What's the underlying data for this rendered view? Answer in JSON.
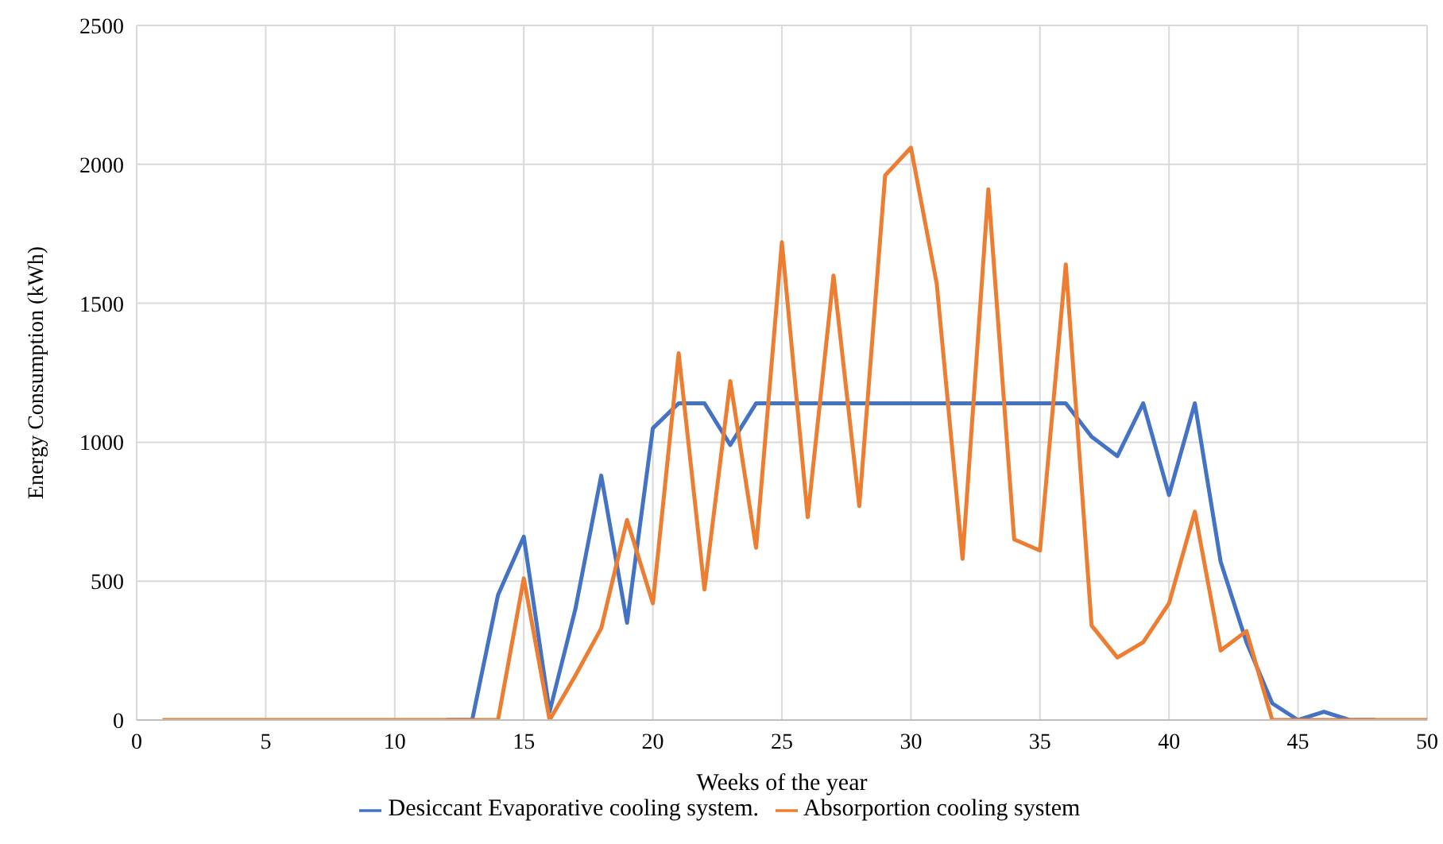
{
  "chart_data": {
    "type": "line",
    "xlabel": "Weeks of the year",
    "ylabel": "Energy Consumption (kWh)",
    "x": [
      1,
      2,
      3,
      4,
      5,
      6,
      7,
      8,
      9,
      10,
      11,
      12,
      13,
      14,
      15,
      16,
      17,
      18,
      19,
      20,
      21,
      22,
      23,
      24,
      25,
      26,
      27,
      28,
      29,
      30,
      31,
      32,
      33,
      34,
      35,
      36,
      37,
      38,
      39,
      40,
      41,
      42,
      43,
      44,
      45,
      46,
      47,
      48,
      49,
      50
    ],
    "series": [
      {
        "name": "Desiccant Evaporative cooling system.",
        "color": "#4472c4",
        "values": [
          null,
          null,
          null,
          null,
          null,
          null,
          null,
          null,
          null,
          null,
          null,
          0,
          0,
          450,
          660,
          30,
          400,
          880,
          350,
          1050,
          1140,
          1140,
          990,
          1140,
          1140,
          1140,
          1140,
          1140,
          1140,
          1140,
          1140,
          1140,
          1140,
          1140,
          1140,
          1140,
          1020,
          950,
          1140,
          810,
          1140,
          570,
          280,
          60,
          0,
          30,
          0,
          0,
          null,
          null
        ]
      },
      {
        "name": "Absorportion cooling system",
        "color": "#ed7d31",
        "values": [
          0,
          0,
          0,
          0,
          0,
          0,
          0,
          0,
          0,
          0,
          0,
          0,
          0,
          0,
          510,
          0,
          160,
          330,
          720,
          420,
          1320,
          470,
          1220,
          620,
          1720,
          730,
          1600,
          770,
          1960,
          2060,
          1570,
          580,
          1910,
          650,
          610,
          1640,
          340,
          225,
          280,
          420,
          750,
          250,
          320,
          0,
          0,
          0,
          0,
          0,
          0,
          0
        ]
      }
    ],
    "xlim": [
      0,
      50
    ],
    "xticks": [
      0,
      5,
      10,
      15,
      20,
      25,
      30,
      35,
      40,
      45,
      50
    ],
    "ylim": [
      0,
      2500
    ],
    "yticks": [
      0,
      500,
      1000,
      1500,
      2000,
      2500
    ],
    "grid": true,
    "legend": "bottom",
    "marker": "none",
    "line_style": "solid"
  }
}
